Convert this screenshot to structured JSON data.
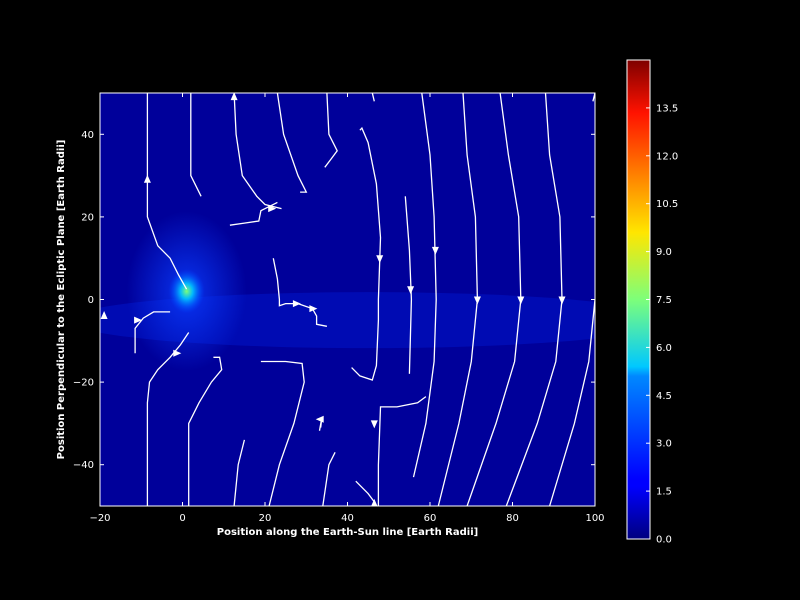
{
  "chart_data": {
    "type": "heatmap",
    "xlabel": "Position along the Earth-Sun line [Earth Radii]",
    "ylabel": "Position Perpendicular to the Ecliptic Plane [Earth Radii]",
    "xlim": [
      -20,
      100
    ],
    "ylim": [
      -50,
      50
    ],
    "xticks": [
      "−20",
      "0",
      "20",
      "40",
      "60",
      "80",
      "100"
    ],
    "yticks": [
      "−40",
      "−20",
      "0",
      "20",
      "40"
    ],
    "colorbar": {
      "range": [
        0.0,
        15.0
      ],
      "colormap": "jet",
      "ticks": [
        "0.0",
        "1.5",
        "3.0",
        "4.5",
        "6.0",
        "7.5",
        "9.0",
        "10.5",
        "12.0",
        "13.5"
      ]
    },
    "hotspot": {
      "x": 1,
      "y": 2,
      "value": 8.0
    },
    "streamlines": [
      [
        [
          -8.5,
          50
        ],
        [
          -8.5,
          35
        ],
        [
          -8.5,
          20
        ],
        [
          -6,
          13
        ],
        [
          -3,
          10
        ],
        [
          -1,
          6
        ],
        [
          1,
          2.5
        ]
      ],
      [
        [
          -11.5,
          -13
        ],
        [
          -11.5,
          -7
        ],
        [
          -9.5,
          -4.5
        ],
        [
          -7,
          -3
        ],
        [
          -3,
          -3
        ]
      ],
      [
        [
          -8.5,
          -50
        ],
        [
          -8.5,
          -25
        ],
        [
          -8,
          -20
        ],
        [
          -6,
          -17
        ],
        [
          -3,
          -14
        ],
        [
          -0.5,
          -11
        ],
        [
          1.5,
          -8
        ]
      ],
      [
        [
          1.5,
          -50
        ],
        [
          1.5,
          -30
        ],
        [
          4,
          -25
        ],
        [
          7,
          -20
        ],
        [
          9.5,
          -17
        ],
        [
          9,
          -14
        ],
        [
          7.5,
          -14
        ]
      ],
      [
        [
          2,
          50
        ],
        [
          2,
          38
        ],
        [
          2,
          30
        ],
        [
          4.5,
          25
        ]
      ],
      [
        [
          12.5,
          -50
        ],
        [
          13.5,
          -40
        ],
        [
          15,
          -34
        ]
      ],
      [
        [
          12.5,
          50
        ],
        [
          13,
          40
        ],
        [
          14.5,
          30
        ],
        [
          18,
          25
        ],
        [
          20,
          23
        ],
        [
          24,
          22
        ]
      ],
      [
        [
          11.5,
          18
        ],
        [
          15,
          18.5
        ],
        [
          18.5,
          19
        ],
        [
          19,
          21.5
        ],
        [
          21,
          22.5
        ],
        [
          23,
          23.5
        ]
      ],
      [
        [
          23,
          50
        ],
        [
          24.5,
          40
        ],
        [
          28,
          30
        ],
        [
          30,
          26
        ],
        [
          28.5,
          26
        ]
      ],
      [
        [
          22,
          10
        ],
        [
          23,
          5
        ],
        [
          23.5,
          0
        ],
        [
          23.5,
          -1.5
        ],
        [
          25,
          -1
        ],
        [
          28,
          -1
        ],
        [
          31.5,
          -2.2
        ],
        [
          32.5,
          -4
        ],
        [
          32.5,
          -6
        ],
        [
          35,
          -6.5
        ]
      ],
      [
        [
          21,
          -50
        ],
        [
          23.5,
          -40
        ],
        [
          27,
          -30
        ],
        [
          29.5,
          -20
        ],
        [
          29,
          -15.5
        ],
        [
          25,
          -15
        ],
        [
          19,
          -15
        ]
      ],
      [
        [
          35,
          50
        ],
        [
          35.5,
          40
        ],
        [
          37.5,
          36
        ],
        [
          36,
          34
        ],
        [
          34.5,
          32
        ]
      ],
      [
        [
          33.5,
          -31
        ],
        [
          33.8,
          -28.5
        ],
        [
          33.2,
          -31.8
        ]
      ],
      [
        [
          34,
          -50
        ],
        [
          35.5,
          -40
        ],
        [
          37,
          -37
        ]
      ],
      [
        [
          46,
          50
        ],
        [
          46.5,
          48
        ]
      ],
      [
        [
          43,
          41
        ],
        [
          43.5,
          41.5
        ],
        [
          45,
          38
        ],
        [
          47,
          28
        ],
        [
          48,
          15
        ],
        [
          47.5,
          0
        ],
        [
          47.5,
          -5
        ],
        [
          47,
          -16
        ],
        [
          46,
          -19.5
        ],
        [
          43,
          -18.5
        ],
        [
          41,
          -16.5
        ]
      ],
      [
        [
          42,
          -44
        ],
        [
          45,
          -47
        ],
        [
          46.5,
          -49
        ]
      ],
      [
        [
          47.5,
          -50
        ],
        [
          47.5,
          -40
        ],
        [
          48,
          -26
        ],
        [
          52,
          -26
        ],
        [
          57,
          -25
        ],
        [
          59,
          -23.5
        ]
      ],
      [
        [
          54,
          25
        ],
        [
          55,
          12
        ],
        [
          55.5,
          0
        ],
        [
          55,
          -18
        ]
      ],
      [
        [
          54,
          -50
        ]
      ],
      [
        [
          56,
          -43
        ],
        [
          59,
          -30
        ],
        [
          61,
          -15
        ],
        [
          61.5,
          0
        ],
        [
          61,
          20
        ],
        [
          60,
          35
        ],
        [
          58,
          50
        ]
      ],
      [
        [
          62,
          -50
        ],
        [
          67,
          -30
        ],
        [
          70,
          -15
        ],
        [
          71.5,
          0
        ],
        [
          71,
          20
        ],
        [
          69,
          35
        ],
        [
          68,
          50
        ]
      ],
      [
        [
          69,
          -50
        ],
        [
          76,
          -30
        ],
        [
          80.5,
          -15
        ],
        [
          82,
          0
        ],
        [
          81.5,
          20
        ],
        [
          79,
          35
        ],
        [
          77,
          50
        ]
      ],
      [
        [
          78.5,
          -50
        ],
        [
          86,
          -30
        ],
        [
          90.5,
          -15
        ],
        [
          92,
          0
        ],
        [
          91.5,
          20
        ],
        [
          89,
          35
        ],
        [
          88,
          50
        ]
      ],
      [
        [
          89,
          -50
        ],
        [
          95,
          -30
        ],
        [
          98.5,
          -15
        ],
        [
          100,
          0
        ]
      ],
      [
        [
          100,
          50
        ],
        [
          99.5,
          48
        ]
      ]
    ],
    "arrows": [
      {
        "x": -8.5,
        "y": 29,
        "dir": "up"
      },
      {
        "x": 12.5,
        "y": 49,
        "dir": "up"
      },
      {
        "x": -19,
        "y": -4,
        "dir": "up"
      },
      {
        "x": -11,
        "y": -5,
        "dir": "right"
      },
      {
        "x": -1.5,
        "y": -13,
        "dir": "right"
      },
      {
        "x": 21.5,
        "y": 22,
        "dir": "right"
      },
      {
        "x": 27.5,
        "y": -1,
        "dir": "right"
      },
      {
        "x": 31.5,
        "y": -2.2,
        "dir": "right"
      },
      {
        "x": 33.5,
        "y": -29,
        "dir": "left"
      },
      {
        "x": 47.8,
        "y": 10,
        "dir": "down"
      },
      {
        "x": 55.3,
        "y": 2.5,
        "dir": "down"
      },
      {
        "x": 61.3,
        "y": 12,
        "dir": "down"
      },
      {
        "x": 71.5,
        "y": 0,
        "dir": "down"
      },
      {
        "x": 82,
        "y": 0,
        "dir": "down"
      },
      {
        "x": 92,
        "y": 0,
        "dir": "down"
      },
      {
        "x": 46.5,
        "y": -30,
        "dir": "down"
      },
      {
        "x": 46.5,
        "y": -49.5,
        "dir": "up"
      }
    ]
  }
}
